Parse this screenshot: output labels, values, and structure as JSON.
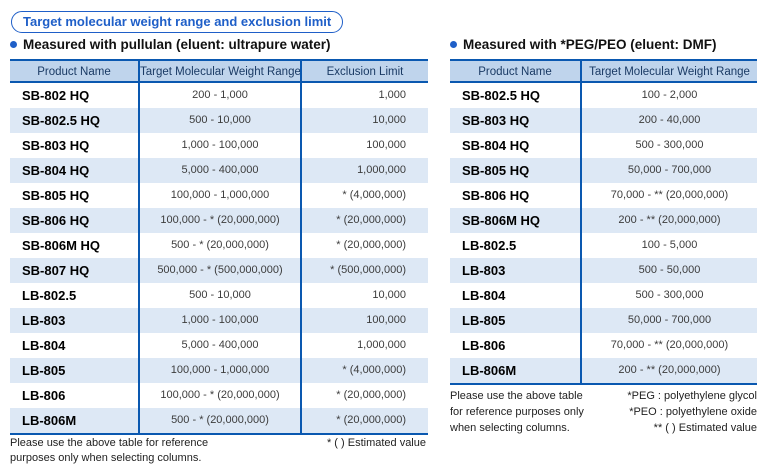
{
  "page": {
    "title": "Target molecular weight range and exclusion limit"
  },
  "colors": {
    "accent_blue": "#1f5fc8",
    "table_border_blue": "#0a58b0",
    "table_header_bg": "#bfd4ec",
    "alt_row_bg": "#dde8f5",
    "header_text": "#1a3a64"
  },
  "icons": {
    "bullet": "blue-dot-bullet-icon"
  },
  "left_table": {
    "section_title": "Measured with pullulan (eluent: ultrapure water)",
    "columns": [
      "Product Name",
      "Target Molecular Weight Range",
      "Exclusion Limit"
    ],
    "rows": [
      [
        "SB-802 HQ",
        "200 - 1,000",
        "1,000"
      ],
      [
        "SB-802.5 HQ",
        "500 - 10,000",
        "10,000"
      ],
      [
        "SB-803 HQ",
        "1,000 - 100,000",
        "100,000"
      ],
      [
        "SB-804 HQ",
        "5,000 - 400,000",
        "1,000,000"
      ],
      [
        "SB-805 HQ",
        "100,000 - 1,000,000",
        "* (4,000,000)"
      ],
      [
        "SB-806 HQ",
        "100,000 - * (20,000,000)",
        "* (20,000,000)"
      ],
      [
        "SB-806M HQ",
        "500 - * (20,000,000)",
        "* (20,000,000)"
      ],
      [
        "SB-807 HQ",
        "500,000 - * (500,000,000)",
        "* (500,000,000)"
      ],
      [
        "LB-802.5",
        "500 - 10,000",
        "10,000"
      ],
      [
        "LB-803",
        "1,000 - 100,000",
        "100,000"
      ],
      [
        "LB-804",
        "5,000 - 400,000",
        "1,000,000"
      ],
      [
        "LB-805",
        "100,000 - 1,000,000",
        "* (4,000,000)"
      ],
      [
        "LB-806",
        "100,000 - * (20,000,000)",
        "* (20,000,000)"
      ],
      [
        "LB-806M",
        "500 - * (20,000,000)",
        "* (20,000,000)"
      ]
    ],
    "footnote_left_lines": [
      "Please use the above table for reference",
      "purposes only when selecting columns."
    ],
    "footnote_right": "* ( ) Estimated value"
  },
  "right_table": {
    "section_title": "Measured with *PEG/PEO (eluent: DMF)",
    "columns": [
      "Product Name",
      "Target Molecular Weight Range"
    ],
    "rows": [
      [
        "SB-802.5 HQ",
        "100 - 2,000"
      ],
      [
        "SB-803 HQ",
        "200 - 40,000"
      ],
      [
        "SB-804 HQ",
        "500 - 300,000"
      ],
      [
        "SB-805 HQ",
        "50,000 - 700,000"
      ],
      [
        "SB-806 HQ",
        "70,000 - ** (20,000,000)"
      ],
      [
        "SB-806M HQ",
        "200 - ** (20,000,000)"
      ],
      [
        "LB-802.5",
        "100 - 5,000"
      ],
      [
        "LB-803",
        "500 - 50,000"
      ],
      [
        "LB-804",
        "500 - 300,000"
      ],
      [
        "LB-805",
        "50,000 - 700,000"
      ],
      [
        "LB-806",
        "70,000 - ** (20,000,000)"
      ],
      [
        "LB-806M",
        "200 - ** (20,000,000)"
      ]
    ],
    "footnote_left_lines": [
      "Please use the above table",
      "for reference purposes only",
      "when selecting columns."
    ],
    "footnote_right_lines": [
      "*PEG : polyethylene glycol",
      "*PEO : polyethylene oxide",
      "** ( ) Estimated value"
    ]
  }
}
